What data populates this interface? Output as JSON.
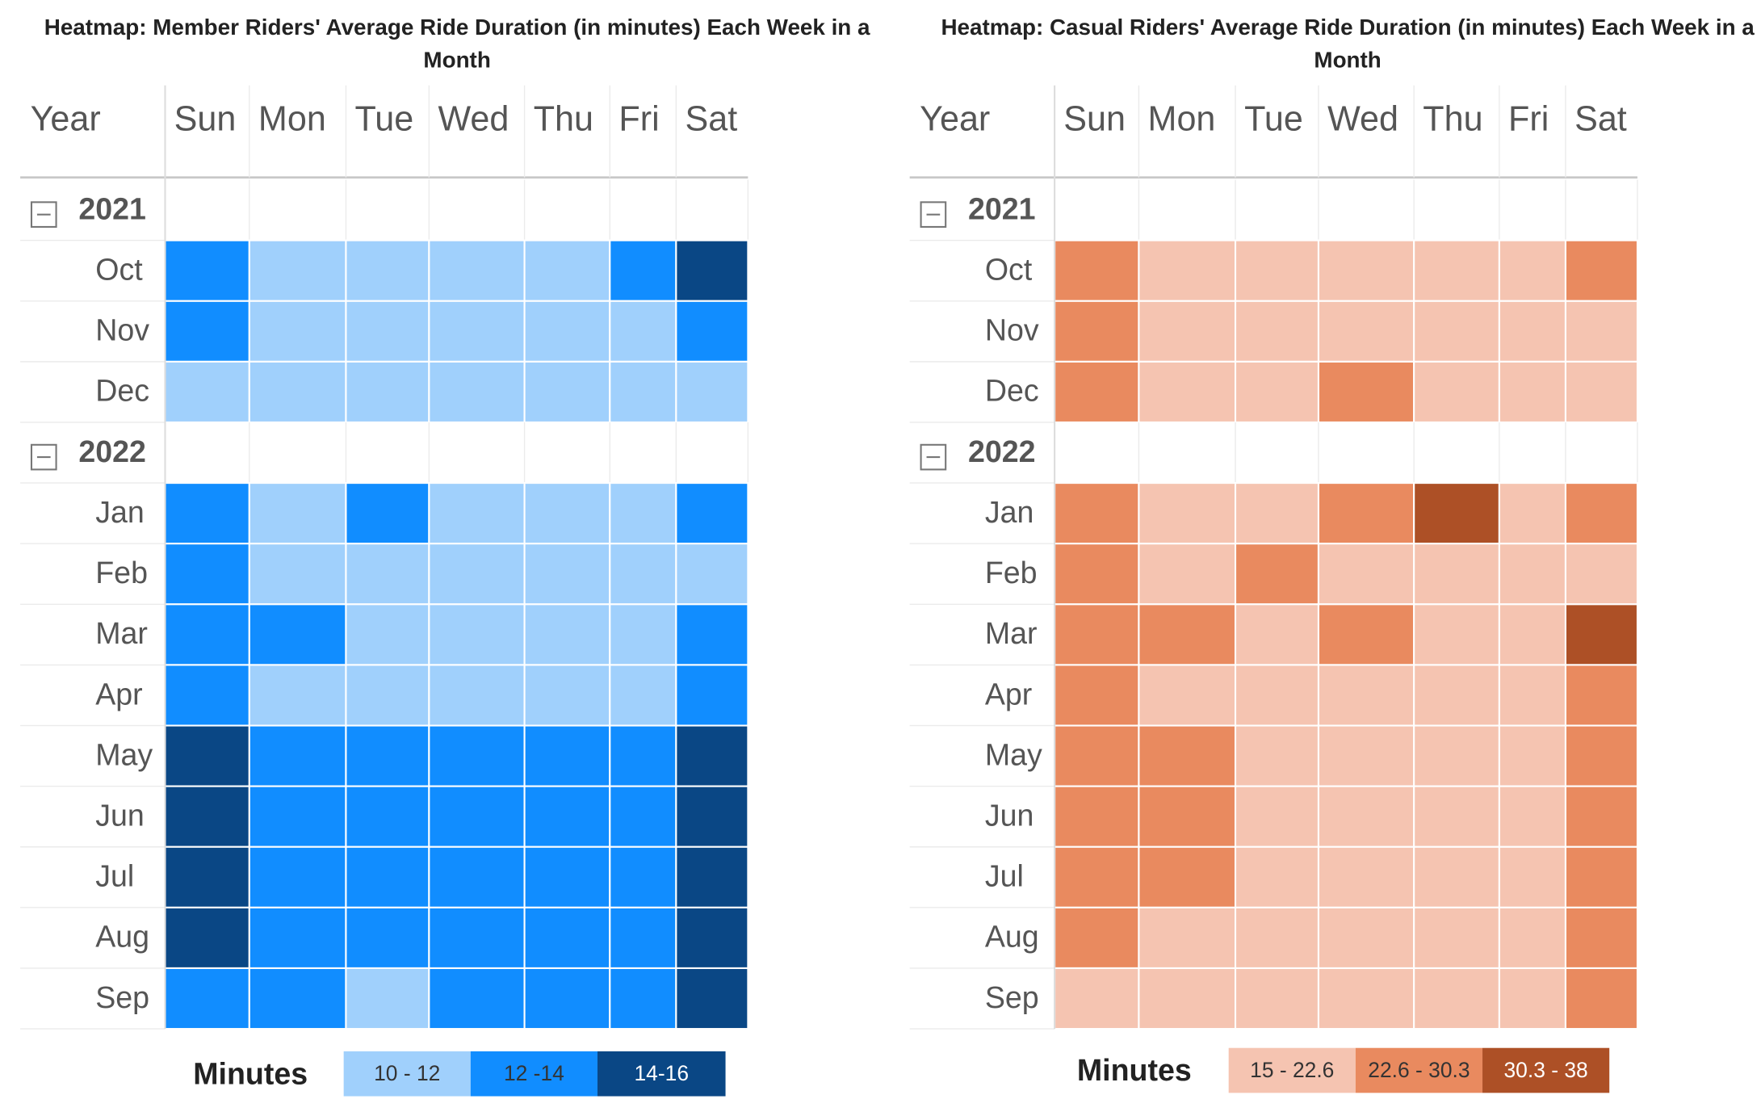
{
  "chart_data": [
    {
      "type": "heatmap",
      "title": "Heatmap: Member Riders' Average Ride Duration (in minutes) Each Week in a Month",
      "row_header": "Year",
      "columns": [
        "Sun",
        "Mon",
        "Tue",
        "Wed",
        "Thu",
        "Fri",
        "Sat"
      ],
      "groups": [
        {
          "name": "2021",
          "rows": [
            {
              "label": "Oct",
              "values": [
                13,
                11,
                11,
                11,
                11,
                13,
                15
              ]
            },
            {
              "label": "Nov",
              "values": [
                13,
                11,
                11,
                11,
                11,
                11,
                13
              ]
            },
            {
              "label": "Dec",
              "values": [
                11,
                11,
                11,
                11,
                11,
                11,
                11
              ]
            }
          ]
        },
        {
          "name": "2022",
          "rows": [
            {
              "label": "Jan",
              "values": [
                13,
                11,
                13,
                11,
                11,
                11,
                13
              ]
            },
            {
              "label": "Feb",
              "values": [
                13,
                11,
                11,
                11,
                11,
                11,
                11
              ]
            },
            {
              "label": "Mar",
              "values": [
                13,
                13,
                11,
                11,
                11,
                11,
                13
              ]
            },
            {
              "label": "Apr",
              "values": [
                13,
                11,
                11,
                11,
                11,
                11,
                13
              ]
            },
            {
              "label": "May",
              "values": [
                15,
                13,
                13,
                13,
                13,
                13,
                15
              ]
            },
            {
              "label": "Jun",
              "values": [
                15,
                13,
                13,
                13,
                13,
                13,
                15
              ]
            },
            {
              "label": "Jul",
              "values": [
                15,
                13,
                13,
                13,
                13,
                13,
                15
              ]
            },
            {
              "label": "Aug",
              "values": [
                15,
                13,
                13,
                13,
                13,
                13,
                15
              ]
            },
            {
              "label": "Sep",
              "values": [
                13,
                13,
                11,
                13,
                13,
                13,
                15
              ]
            }
          ]
        }
      ],
      "legend": {
        "title": "Minutes",
        "bins": [
          {
            "label": "10 - 12",
            "range": [
              10,
              12
            ],
            "color": "#a0d0fc"
          },
          {
            "label": "12 -14",
            "range": [
              12,
              14
            ],
            "color": "#118dff"
          },
          {
            "label": "14-16",
            "range": [
              14,
              16
            ],
            "color": "#0a4785"
          }
        ]
      }
    },
    {
      "type": "heatmap",
      "title": "Heatmap: Casual Riders' Average Ride Duration (in minutes) Each Week in a Month",
      "row_header": "Year",
      "columns": [
        "Sun",
        "Mon",
        "Tue",
        "Wed",
        "Thu",
        "Fri",
        "Sat"
      ],
      "groups": [
        {
          "name": "2021",
          "rows": [
            {
              "label": "Oct",
              "values": [
                26,
                19,
                19,
                19,
                19,
                19,
                26
              ]
            },
            {
              "label": "Nov",
              "values": [
                26,
                19,
                19,
                19,
                19,
                19,
                19
              ]
            },
            {
              "label": "Dec",
              "values": [
                26,
                19,
                19,
                26,
                19,
                19,
                19
              ]
            }
          ]
        },
        {
          "name": "2022",
          "rows": [
            {
              "label": "Jan",
              "values": [
                26,
                19,
                19,
                26,
                34,
                19,
                26
              ]
            },
            {
              "label": "Feb",
              "values": [
                26,
                19,
                26,
                19,
                19,
                19,
                19
              ]
            },
            {
              "label": "Mar",
              "values": [
                26,
                26,
                19,
                26,
                19,
                19,
                34
              ]
            },
            {
              "label": "Apr",
              "values": [
                26,
                19,
                19,
                19,
                19,
                19,
                26
              ]
            },
            {
              "label": "May",
              "values": [
                26,
                26,
                19,
                19,
                19,
                19,
                26
              ]
            },
            {
              "label": "Jun",
              "values": [
                26,
                26,
                19,
                19,
                19,
                19,
                26
              ]
            },
            {
              "label": "Jul",
              "values": [
                26,
                26,
                19,
                19,
                19,
                19,
                26
              ]
            },
            {
              "label": "Aug",
              "values": [
                26,
                19,
                19,
                19,
                19,
                19,
                26
              ]
            },
            {
              "label": "Sep",
              "values": [
                19,
                19,
                19,
                19,
                19,
                19,
                26
              ]
            }
          ]
        }
      ],
      "legend": {
        "title": "Minutes",
        "bins": [
          {
            "label": "15 - 22.6",
            "range": [
              15,
              22.6
            ],
            "color": "#f5c4b1"
          },
          {
            "label": "22.6 - 30.3",
            "range": [
              22.6,
              30.3
            ],
            "color": "#e98a5f"
          },
          {
            "label": "30.3 - 38",
            "range": [
              30.3,
              38
            ],
            "color": "#ad5026"
          }
        ]
      }
    }
  ]
}
